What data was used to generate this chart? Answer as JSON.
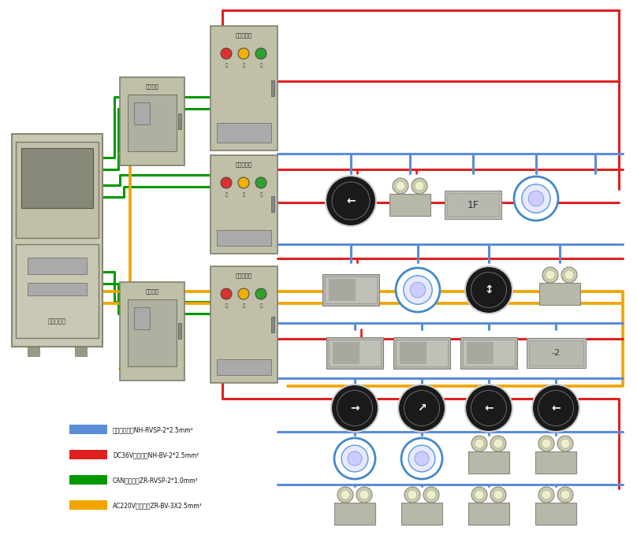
{
  "bg_color": "#ffffff",
  "legend": [
    {
      "label": "无极二总线：NH-RVSP-2*2.5mm²",
      "color": "#5b8dd9"
    },
    {
      "label": "DC36V电源线：NH-BV-2*2.5mm²",
      "color": "#e02020"
    },
    {
      "label": "CAN通讯线：ZR-RVSP-2*1.0mm²",
      "color": "#009900"
    },
    {
      "label": "AC220V电源线：ZR-BV-3X2.5mm²",
      "color": "#f0a500"
    }
  ],
  "colors": {
    "blue": "#5b8dd9",
    "red": "#e02020",
    "green": "#009900",
    "yellow": "#f0a500",
    "box_fill": "#c0c0a8",
    "box_edge": "#808070"
  },
  "lw_main": 2.2,
  "lw_bus": 2.0,
  "lw_drop": 1.8
}
